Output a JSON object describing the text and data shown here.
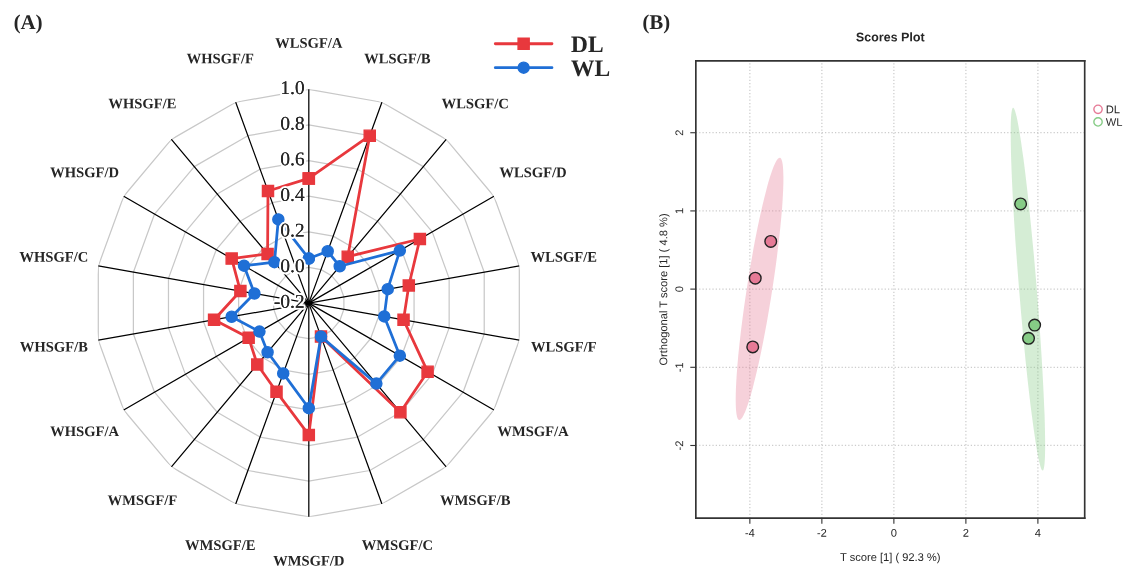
{
  "chart_data": [
    {
      "type": "radar",
      "annotations": [
        "(A)"
      ],
      "categories": [
        "WLSGF/A",
        "WLSGF/B",
        "WLSGF/C",
        "WLSGF/D",
        "WLSGF/E",
        "WLSGF/F",
        "WMSGF/A",
        "WMSGF/B",
        "WMSGF/C",
        "WMSGF/D",
        "WMSGF/E",
        "WMSGF/F",
        "WHSGF/A",
        "WHSGF/B",
        "WHSGF/C",
        "WHSGF/D",
        "WHSGF/E",
        "WHSGF/F"
      ],
      "series": [
        {
          "name": "DL",
          "color": "#e8383d",
          "marker": "square",
          "values": [
            0.5,
            0.8,
            0.14,
            0.52,
            0.37,
            0.34,
            0.57,
            0.6,
            0.0,
            0.54,
            0.33,
            0.25,
            0.19,
            0.34,
            0.19,
            0.3,
            0.16,
            0.47
          ]
        },
        {
          "name": "WL",
          "color": "#1f6fd6",
          "marker": "circle",
          "values": [
            0.05,
            0.11,
            0.07,
            0.39,
            0.25,
            0.23,
            0.39,
            0.39,
            0.0,
            0.39,
            0.22,
            0.16,
            0.12,
            0.24,
            0.11,
            0.22,
            0.1,
            0.3
          ]
        }
      ],
      "ylim": [
        -0.2,
        1.0
      ],
      "yticks": [
        -0.2,
        {
          "value": 0,
          "label": "0.0"
        },
        0.2,
        0.4,
        0.6,
        0.8,
        {
          "value": 1.0,
          "label": "1.0"
        }
      ],
      "grid": true,
      "legend": "top right"
    },
    {
      "type": "scatter",
      "title": "Scores Plot",
      "annotations": [
        "(B)"
      ],
      "xlabel": "T score [1] ( 92.3 %)",
      "ylabel": "Orthogonal T score [1] ( 4.8 %)",
      "series": [
        {
          "name": "DL",
          "color": "#e67a96",
          "x": [
            -3.42,
            -3.85,
            -3.92
          ],
          "values": [
            0.61,
            0.14,
            -0.74
          ]
        },
        {
          "name": "WL",
          "color": "#86cc86",
          "x": [
            3.52,
            3.91,
            3.74
          ],
          "values": [
            1.09,
            -0.46,
            -0.63
          ]
        }
      ],
      "xlim": [
        -5.5,
        5.3
      ],
      "ylim": [
        -2.93,
        2.92
      ],
      "xticks": [
        -4,
        -2,
        0,
        2,
        4
      ],
      "yticks": [
        -2,
        -1,
        0,
        1,
        2
      ],
      "grid": true,
      "legend": "right",
      "marker": "circle"
    }
  ]
}
